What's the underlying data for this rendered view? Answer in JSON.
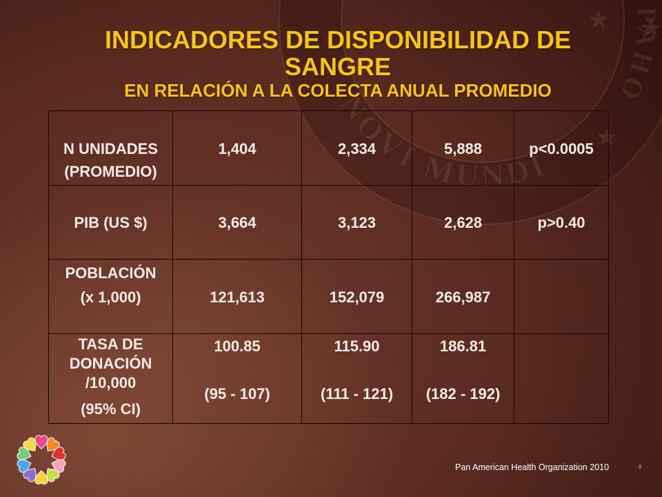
{
  "slide": {
    "title_line1": "INDICADORES DE DISPONIBILIDAD DE",
    "title_line2": "SANGRE",
    "subtitle": "EN RELACIÓN A LA COLECTA ANUAL PROMEDIO",
    "colors": {
      "title": "#f5c518",
      "table_text": "#f2ebe6",
      "table_border": "#140705",
      "background": "#5a2a20"
    }
  },
  "table": {
    "rows": [
      {
        "label": [
          "N UNIDADES",
          "(PROMEDIO)"
        ],
        "cells": [
          "1,404",
          "2,334",
          "5,888",
          "p<0.0005"
        ]
      },
      {
        "label": [
          "PIB (US $)"
        ],
        "cells": [
          "3,664",
          "3,123",
          "2,628",
          "p>0.40"
        ]
      },
      {
        "label": [
          "POBLACIÓN",
          "(x 1,000)"
        ],
        "cells": [
          "121,613",
          "152,079",
          "266,987"
        ]
      },
      {
        "label": [
          "TASA DE",
          "DONACIÓN",
          "/10,000",
          "(95% CI)"
        ],
        "cells": [
          {
            "value": "100.85",
            "ci": "(95 - 107)"
          },
          {
            "value": "115.90",
            "ci": "(111 - 121)"
          },
          {
            "value": "186.81",
            "ci": "(182 - 192)"
          }
        ]
      }
    ]
  },
  "footer": {
    "organization": "Pan American Health Organization 2010",
    "slide_number": "8"
  },
  "watermark": {
    "icon": "paho-seal-watermark",
    "arc_text": "NOVI MUNDI",
    "side_text": "PAHO"
  },
  "logo": {
    "icon": "hearts-ring-logo",
    "heart_colors": [
      "#e8478b",
      "#f4892a",
      "#e3302f",
      "#f7a3c0",
      "#c9dc4e",
      "#f6d23c",
      "#8f6bd0",
      "#4fa6e6",
      "#6fcf7a",
      "#f8d84a"
    ]
  }
}
